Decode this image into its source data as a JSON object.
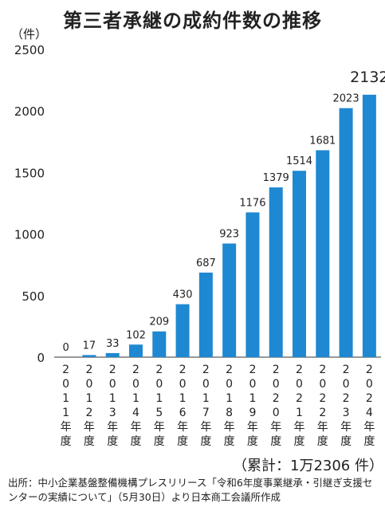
{
  "title": "第三者承継の成約件数の推移",
  "unit_label": "（件）",
  "total_label": "（累計：1万2306 件）",
  "source_note": "出所：中小企業基盤整備機構プレスリリース「令和6年度事業継承・引継ぎ支援センターの実績について」（5月30日）より日本商工会議所作成",
  "colors": {
    "bar": "#1e88d2",
    "axis": "#333333",
    "grid": "#bbbbbb"
  },
  "chart_data": {
    "type": "bar",
    "title": "第三者承継の成約件数の推移",
    "ylabel": "（件）",
    "ylim": [
      0,
      2500
    ],
    "yticks": [
      0,
      500,
      1000,
      1500,
      2000,
      2500
    ],
    "grid": false,
    "categories": [
      "2011年度",
      "2012年度",
      "2013年度",
      "2014年度",
      "2015年度",
      "2016年度",
      "2017年度",
      "2018年度",
      "2019年度",
      "2020年度",
      "2021年度",
      "2022年度",
      "2023年度",
      "2024年度"
    ],
    "values": [
      0,
      17,
      33,
      102,
      209,
      430,
      687,
      923,
      1176,
      1379,
      1514,
      1681,
      2023,
      2132
    ],
    "value_labels": [
      "0",
      "17",
      "33",
      "102",
      "209",
      "430",
      "687",
      "923",
      "1176",
      "1379",
      "1514",
      "1681",
      "2023",
      "2132"
    ]
  }
}
